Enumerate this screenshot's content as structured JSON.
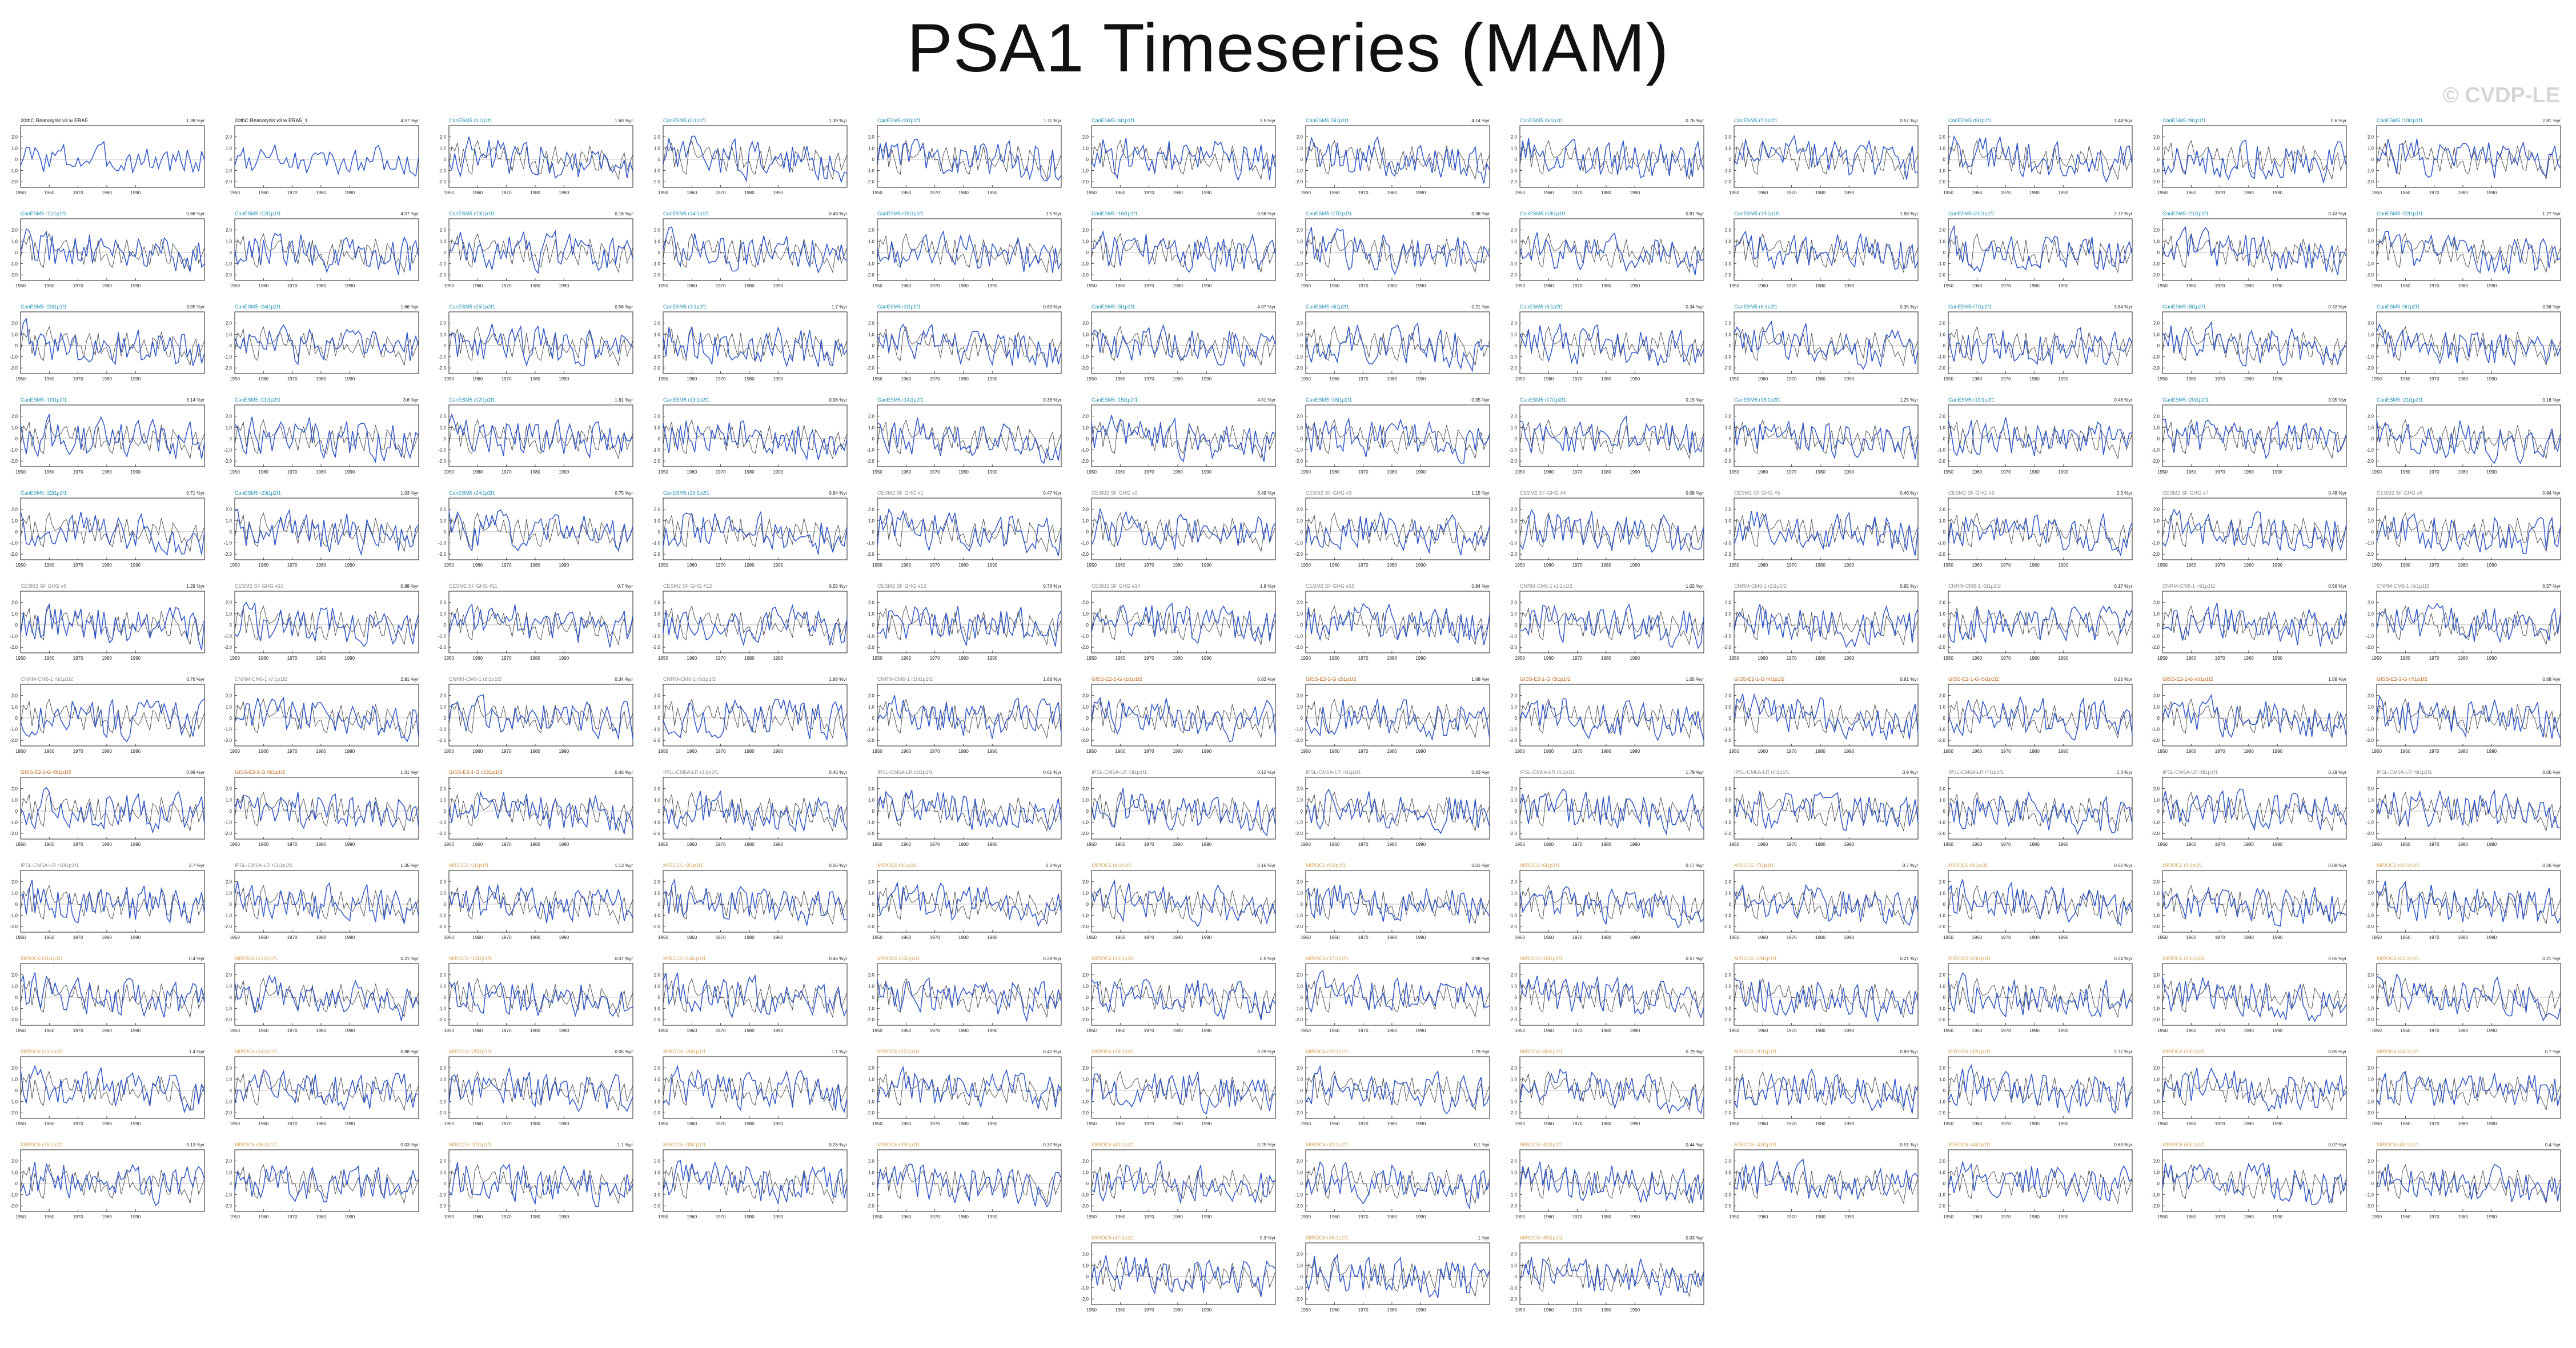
{
  "title": "PSA1 Timeseries (MAM)",
  "watermark": "© CVDP-LE",
  "colors": {
    "model_line": "#2f56c8",
    "obs_line": "#444444",
    "obs_title": "#111111",
    "cesm_title": "#1f8fb5",
    "other_title": "#8a8a8a",
    "gfdl_title": "#c2661f",
    "miroc_title": "#d9a35a"
  },
  "chart_data": {
    "type": "line",
    "xlim": [
      1950,
      2014
    ],
    "xticks": [
      1950,
      1960,
      1970,
      1980,
      1990
    ],
    "ylim": [
      -2.5,
      3.0
    ],
    "yticks": [
      "2.0",
      "1.0",
      "0",
      "-1.0",
      "-2.0"
    ],
    "grid": false,
    "panels": [
      {
        "label": "20thC Reanalysis v3 w ERA5",
        "pct": "1.38 %yr",
        "group": "obs"
      },
      {
        "label": "20thC Reanalysis v3 w ERA5_1",
        "pct": "4.57 %yr",
        "group": "obs"
      },
      {
        "label": "CanESM5 r1i1p1f1",
        "pct": "1.60 %yr",
        "group": "cesm"
      },
      {
        "label": "CanESM5 r2i1p1f1",
        "pct": "1.39 %yr",
        "group": "cesm"
      },
      {
        "label": "CanESM5 r3i1p1f1",
        "pct": "1.11 %yr",
        "group": "cesm"
      },
      {
        "label": "CanESM5 r4i1p1f1",
        "pct": "3.5 %yr",
        "group": "cesm"
      },
      {
        "label": "CanESM5 r5i1p1f1",
        "pct": "4.14 %yr",
        "group": "cesm"
      },
      {
        "label": "CanESM5 r6i1p1f1",
        "pct": "0.76 %yr",
        "group": "cesm"
      },
      {
        "label": "CanESM5 r7i1p1f1",
        "pct": "0.57 %yr",
        "group": "cesm"
      },
      {
        "label": "CanESM5 r8i1p1f1",
        "pct": "1.44 %yr",
        "group": "cesm"
      },
      {
        "label": "CanESM5 r9i1p1f1",
        "pct": "0.6 %yr",
        "group": "cesm"
      },
      {
        "label": "CanESM5 r10i1p1f1",
        "pct": "2.81 %yr",
        "group": "cesm"
      },
      {
        "label": "CanESM5 r11i1p1f1",
        "pct": "0.86 %yr",
        "group": "cesm"
      },
      {
        "label": "CanESM5 r12i1p1f1",
        "pct": "4.57 %yr",
        "group": "cesm"
      },
      {
        "label": "CanESM5 r13i1p1f1",
        "pct": "0.16 %yr",
        "group": "cesm"
      },
      {
        "label": "CanESM5 r14i1p1f1",
        "pct": "0.48 %yr",
        "group": "cesm"
      },
      {
        "label": "CanESM5 r15i1p1f1",
        "pct": "1.5 %yr",
        "group": "cesm"
      },
      {
        "label": "CanESM5 r16i1p1f1",
        "pct": "0.56 %yr",
        "group": "cesm"
      },
      {
        "label": "CanESM5 r17i1p1f1",
        "pct": "0.36 %yr",
        "group": "cesm"
      },
      {
        "label": "CanESM5 r18i1p1f1",
        "pct": "0.81 %yr",
        "group": "cesm"
      },
      {
        "label": "CanESM5 r19i1p1f1",
        "pct": "1.88 %yr",
        "group": "cesm"
      },
      {
        "label": "CanESM5 r20i1p1f1",
        "pct": "2.77 %yr",
        "group": "cesm"
      },
      {
        "label": "CanESM5 r21i1p1f1",
        "pct": "0.43 %yr",
        "group": "cesm"
      },
      {
        "label": "CanESM5 r22i1p1f1",
        "pct": "1.27 %yr",
        "group": "cesm"
      },
      {
        "label": "CanESM5 r23i1p1f1",
        "pct": "3.05 %yr",
        "group": "cesm"
      },
      {
        "label": "CanESM5 r24i1p2f1",
        "pct": "1.66 %yr",
        "group": "cesm"
      },
      {
        "label": "CanESM5 r25i1p2f1",
        "pct": "0.58 %yr",
        "group": "cesm"
      },
      {
        "label": "CanESM5 r1i1p2f1",
        "pct": "1.7 %yr",
        "group": "cesm"
      },
      {
        "label": "CanESM5 r2i1p2f1",
        "pct": "0.83 %yr",
        "group": "cesm"
      },
      {
        "label": "CanESM5 r3i1p2f1",
        "pct": "4.07 %yr",
        "group": "cesm"
      },
      {
        "label": "CanESM5 r4i1p2f1",
        "pct": "0.21 %yr",
        "group": "cesm"
      },
      {
        "label": "CanESM5 r5i1p2f1",
        "pct": "0.34 %yr",
        "group": "cesm"
      },
      {
        "label": "CanESM5 r6i1p2f1",
        "pct": "0.35 %yr",
        "group": "cesm"
      },
      {
        "label": "CanESM5 r7i1p2f1",
        "pct": "3.84 %yr",
        "group": "cesm"
      },
      {
        "label": "CanESM5 r8i1p2f1",
        "pct": "0.32 %yr",
        "group": "cesm"
      },
      {
        "label": "CanESM5 r9i1p2f1",
        "pct": "0.56 %yr",
        "group": "cesm"
      },
      {
        "label": "CanESM5 r10i1p2f1",
        "pct": "3.14 %yr",
        "group": "cesm"
      },
      {
        "label": "CanESM5 r11i1p2f1",
        "pct": "3.6 %yr",
        "group": "cesm"
      },
      {
        "label": "CanESM5 r12i1p2f1",
        "pct": "1.61 %yr",
        "group": "cesm"
      },
      {
        "label": "CanESM5 r13i1p2f1",
        "pct": "0.98 %yr",
        "group": "cesm"
      },
      {
        "label": "CanESM5 r14i1p2f1",
        "pct": "0.36 %yr",
        "group": "cesm"
      },
      {
        "label": "CanESM5 r15i1p2f1",
        "pct": "4.01 %yr",
        "group": "cesm"
      },
      {
        "label": "CanESM5 r16i1p2f1",
        "pct": "0.95 %yr",
        "group": "cesm"
      },
      {
        "label": "CanESM5 r17i1p2f1",
        "pct": "0.15 %yr",
        "group": "cesm"
      },
      {
        "label": "CanESM5 r18i1p2f1",
        "pct": "1.25 %yr",
        "group": "cesm"
      },
      {
        "label": "CanESM5 r19i1p2f1",
        "pct": "0.46 %yr",
        "group": "cesm"
      },
      {
        "label": "CanESM5 r20i1p2f1",
        "pct": "0.95 %yr",
        "group": "cesm"
      },
      {
        "label": "CanESM5 r21i1p2f1",
        "pct": "0.16 %yr",
        "group": "cesm"
      },
      {
        "label": "CanESM5 r22i1p2f1",
        "pct": "0.71 %yr",
        "group": "cesm"
      },
      {
        "label": "CanESM5 r23i1p2f1",
        "pct": "1.03 %yr",
        "group": "cesm"
      },
      {
        "label": "CanESM5 r24i1p2f1",
        "pct": "0.75 %yr",
        "group": "cesm"
      },
      {
        "label": "CanESM5 r25i1p2f1",
        "pct": "0.84 %yr",
        "group": "cesm"
      },
      {
        "label": "CESM2 SF GHG #1",
        "pct": "0.47 %yr",
        "group": "other"
      },
      {
        "label": "CESM2 SF GHG #2",
        "pct": "3.49 %yr",
        "group": "other"
      },
      {
        "label": "CESM2 SF GHG #3",
        "pct": "1.15 %yr",
        "group": "other"
      },
      {
        "label": "CESM2 SF GHG #4",
        "pct": "0.08 %yr",
        "group": "other"
      },
      {
        "label": "CESM2 SF GHG #5",
        "pct": "0.46 %yr",
        "group": "other"
      },
      {
        "label": "CESM2 SF GHG #6",
        "pct": "0.3 %yr",
        "group": "other"
      },
      {
        "label": "CESM2 SF GHG #7",
        "pct": "0.48 %yr",
        "group": "other"
      },
      {
        "label": "CESM2 SF GHG #8",
        "pct": "0.64 %yr",
        "group": "other"
      },
      {
        "label": "CESM2 SF GHG #9",
        "pct": "1.29 %yr",
        "group": "other"
      },
      {
        "label": "CESM2 SF GHG #10",
        "pct": "0.88 %yr",
        "group": "other"
      },
      {
        "label": "CESM2 SF GHG #11",
        "pct": "0.7 %yr",
        "group": "other"
      },
      {
        "label": "CESM2 SF GHG #12",
        "pct": "0.55 %yr",
        "group": "other"
      },
      {
        "label": "CESM2 SF GHG #13",
        "pct": "0.76 %yr",
        "group": "other"
      },
      {
        "label": "CESM2 SF GHG #14",
        "pct": "1.8 %yr",
        "group": "other"
      },
      {
        "label": "CESM2 SF GHG #15",
        "pct": "0.84 %yr",
        "group": "other"
      },
      {
        "label": "CNRM-CM6-1 r1i1p1f2",
        "pct": "1.02 %yr",
        "group": "other"
      },
      {
        "label": "CNRM-CM6-1 r2i1p1f2",
        "pct": "0.95 %yr",
        "group": "other"
      },
      {
        "label": "CNRM-CM6-1 r3i1p1f2",
        "pct": "0.17 %yr",
        "group": "other"
      },
      {
        "label": "CNRM-CM6-1 r4i1p1f2",
        "pct": "0.56 %yr",
        "group": "other"
      },
      {
        "label": "CNRM-CM6-1 r5i1p1f2",
        "pct": "0.57 %yr",
        "group": "other"
      },
      {
        "label": "CNRM-CM6-1 r6i1p1f2",
        "pct": "0.76 %yr",
        "group": "other"
      },
      {
        "label": "CNRM-CM6-1 r7i1p1f2",
        "pct": "2.81 %yr",
        "group": "other"
      },
      {
        "label": "CNRM-CM6-1 r8i1p1f2",
        "pct": "0.34 %yr",
        "group": "other"
      },
      {
        "label": "CNRM-CM6-1 r9i1p1f2",
        "pct": "1.88 %yr",
        "group": "other"
      },
      {
        "label": "CNRM-CM6-1 r10i1p1f2",
        "pct": "1.88 %yr",
        "group": "other"
      },
      {
        "label": "GISS-E2-1-G r1i1p1f2",
        "pct": "0.83 %yr",
        "group": "gfdl"
      },
      {
        "label": "GISS-E2-1-G r2i1p1f2",
        "pct": "1.68 %yr",
        "group": "gfdl"
      },
      {
        "label": "GISS-E2-1-G r3i1p1f2",
        "pct": "1.05 %yr",
        "group": "gfdl"
      },
      {
        "label": "GISS-E2-1-G r4i1p1f2",
        "pct": "0.81 %yr",
        "group": "gfdl"
      },
      {
        "label": "GISS-E2-1-G r5i1p1f2",
        "pct": "0.26 %yr",
        "group": "gfdl"
      },
      {
        "label": "GISS-E2-1-G r6i1p1f2",
        "pct": "1.58 %yr",
        "group": "gfdl"
      },
      {
        "label": "GISS-E2-1-G r7i1p1f2",
        "pct": "0.68 %yr",
        "group": "gfdl"
      },
      {
        "label": "GISS-E2-1-G r8i1p1f2",
        "pct": "0.99 %yr",
        "group": "gfdl"
      },
      {
        "label": "GISS-E2-1-G r9i1p1f2",
        "pct": "1.61 %yr",
        "group": "gfdl"
      },
      {
        "label": "GISS-E2-1-G r10i1p1f2",
        "pct": "0.46 %yr",
        "group": "gfdl"
      },
      {
        "label": "IPSL-CM6A-LR r1i1p1f1",
        "pct": "0.46 %yr",
        "group": "other"
      },
      {
        "label": "IPSL-CM6A-LR r2i1p1f1",
        "pct": "0.61 %yr",
        "group": "other"
      },
      {
        "label": "IPSL-CM6A-LR r3i1p1f1",
        "pct": "0.12 %yr",
        "group": "other"
      },
      {
        "label": "IPSL-CM6A-LR r4i1p1f1",
        "pct": "0.63 %yr",
        "group": "other"
      },
      {
        "label": "IPSL-CM6A-LR r5i1p1f1",
        "pct": "1.79 %yr",
        "group": "other"
      },
      {
        "label": "IPSL-CM6A-LR r6i1p1f1",
        "pct": "0.9 %yr",
        "group": "other"
      },
      {
        "label": "IPSL-CM6A-LR r7i1p1f1",
        "pct": "1.3 %yr",
        "group": "other"
      },
      {
        "label": "IPSL-CM6A-LR r8i1p1f1",
        "pct": "0.29 %yr",
        "group": "other"
      },
      {
        "label": "IPSL-CM6A-LR r9i1p1f1",
        "pct": "0.05 %yr",
        "group": "other"
      },
      {
        "label": "IPSL-CM6A-LR r10i1p1f1",
        "pct": "2.7 %yr",
        "group": "other"
      },
      {
        "label": "IPSL-CM6A-LR r11i1p1f1",
        "pct": "1.35 %yr",
        "group": "other"
      },
      {
        "label": "MIROC6 r1i1p1f1",
        "pct": "1.13 %yr",
        "group": "miroc"
      },
      {
        "label": "MIROC6 r2i1p1f1",
        "pct": "0.06 %yr",
        "group": "miroc"
      },
      {
        "label": "MIROC6 r3i1p1f1",
        "pct": "0.3 %yr",
        "group": "miroc"
      },
      {
        "label": "MIROC6 r4i1p1f1",
        "pct": "0.16 %yr",
        "group": "miroc"
      },
      {
        "label": "MIROC6 r5i1p1f1",
        "pct": "0.61 %yr",
        "group": "miroc"
      },
      {
        "label": "MIROC6 r6i1p1f1",
        "pct": "0.17 %yr",
        "group": "miroc"
      },
      {
        "label": "MIROC6 r7i1p1f1",
        "pct": "0.7 %yr",
        "group": "miroc"
      },
      {
        "label": "MIROC6 r8i1p1f1",
        "pct": "0.62 %yr",
        "group": "miroc"
      },
      {
        "label": "MIROC6 r9i1p1f1",
        "pct": "0.08 %yr",
        "group": "miroc"
      },
      {
        "label": "MIROC6 r10i1p1f1",
        "pct": "0.26 %yr",
        "group": "miroc"
      },
      {
        "label": "MIROC6 r11i1p1f1",
        "pct": "0.4 %yr",
        "group": "miroc"
      },
      {
        "label": "MIROC6 r12i1p1f1",
        "pct": "0.21 %yr",
        "group": "miroc"
      },
      {
        "label": "MIROC6 r13i1p1f1",
        "pct": "0.07 %yr",
        "group": "miroc"
      },
      {
        "label": "MIROC6 r14i1p1f1",
        "pct": "0.46 %yr",
        "group": "miroc"
      },
      {
        "label": "MIROC6 r15i1p1f1",
        "pct": "0.28 %yr",
        "group": "miroc"
      },
      {
        "label": "MIROC6 r16i1p1f1",
        "pct": "0.5 %yr",
        "group": "miroc"
      },
      {
        "label": "MIROC6 r17i1p1f1",
        "pct": "0.98 %yr",
        "group": "miroc"
      },
      {
        "label": "MIROC6 r18i1p1f1",
        "pct": "0.57 %yr",
        "group": "miroc"
      },
      {
        "label": "MIROC6 r19i1p1f1",
        "pct": "0.21 %yr",
        "group": "miroc"
      },
      {
        "label": "MIROC6 r20i1p1f1",
        "pct": "0.24 %yr",
        "group": "miroc"
      },
      {
        "label": "MIROC6 r21i1p1f1",
        "pct": "0.65 %yr",
        "group": "miroc"
      },
      {
        "label": "MIROC6 r22i1p1f1",
        "pct": "0.21 %yr",
        "group": "miroc"
      },
      {
        "label": "MIROC6 r23i1p1f1",
        "pct": "1.4 %yr",
        "group": "miroc"
      },
      {
        "label": "MIROC6 r24i1p1f1",
        "pct": "0.88 %yr",
        "group": "miroc"
      },
      {
        "label": "MIROC6 r25i1p1f1",
        "pct": "0.05 %yr",
        "group": "miroc"
      },
      {
        "label": "MIROC6 r26i1p1f1",
        "pct": "1.1 %yr",
        "group": "miroc"
      },
      {
        "label": "MIROC6 r27i1p1f1",
        "pct": "0.45 %yr",
        "group": "miroc"
      },
      {
        "label": "MIROC6 r28i1p1f1",
        "pct": "0.29 %yr",
        "group": "miroc"
      },
      {
        "label": "MIROC6 r29i1p1f1",
        "pct": "1.79 %yr",
        "group": "miroc"
      },
      {
        "label": "MIROC6 r30i1p1f1",
        "pct": "0.79 %yr",
        "group": "miroc"
      },
      {
        "label": "MIROC6 r31i1p1f1",
        "pct": "0.89 %yr",
        "group": "miroc"
      },
      {
        "label": "MIROC6 r32i1p1f1",
        "pct": "2.77 %yr",
        "group": "miroc"
      },
      {
        "label": "MIROC6 r33i1p1f1",
        "pct": "0.85 %yr",
        "group": "miroc"
      },
      {
        "label": "MIROC6 r34i1p1f1",
        "pct": "0.7 %yr",
        "group": "miroc"
      },
      {
        "label": "MIROC6 r35i1p1f1",
        "pct": "0.13 %yr",
        "group": "miroc"
      },
      {
        "label": "MIROC6 r36i1p1f1",
        "pct": "0.03 %yr",
        "group": "miroc"
      },
      {
        "label": "MIROC6 r37i1p1f1",
        "pct": "1.1 %yr",
        "group": "miroc"
      },
      {
        "label": "MIROC6 r38i1p1f1",
        "pct": "0.26 %yr",
        "group": "miroc"
      },
      {
        "label": "MIROC6 r39i1p1f1",
        "pct": "0.37 %yr",
        "group": "miroc"
      },
      {
        "label": "MIROC6 r40i1p1f1",
        "pct": "0.25 %yr",
        "group": "miroc"
      },
      {
        "label": "MIROC6 r41i1p1f1",
        "pct": "0.1 %yr",
        "group": "miroc"
      },
      {
        "label": "MIROC6 r42i1p1f1",
        "pct": "0.44 %yr",
        "group": "miroc"
      },
      {
        "label": "MIROC6 r43i1p1f1",
        "pct": "0.51 %yr",
        "group": "miroc"
      },
      {
        "label": "MIROC6 r44i1p1f1",
        "pct": "0.63 %yr",
        "group": "miroc"
      },
      {
        "label": "MIROC6 r45i1p1f1",
        "pct": "0.07 %yr",
        "group": "miroc"
      },
      {
        "label": "MIROC6 r46i1p1f1",
        "pct": "0.4 %yr",
        "group": "miroc"
      },
      {
        "label": "MIROC6 r47i1p1f1",
        "pct": "0.3 %yr",
        "group": "miroc"
      },
      {
        "label": "MIROC6 r48i1p1f1",
        "pct": "1 %yr",
        "group": "miroc"
      },
      {
        "label": "MIROC6 r49i1p1f1",
        "pct": "0.03 %yr",
        "group": "miroc"
      }
    ]
  }
}
